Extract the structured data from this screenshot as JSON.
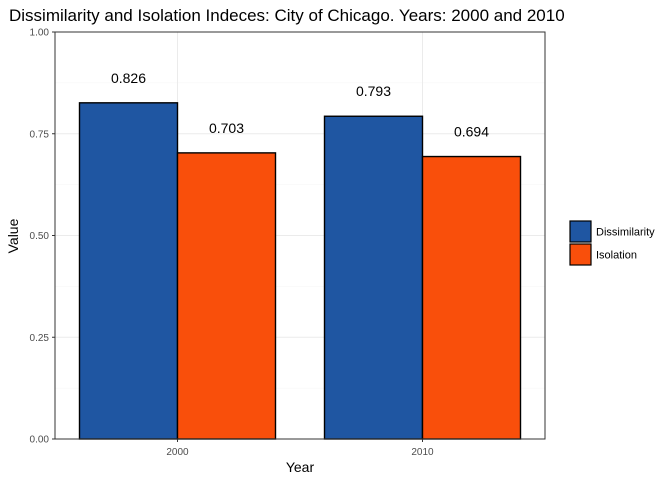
{
  "chart_data": {
    "type": "bar",
    "title": "Dissimilarity and Isolation Indeces: City of Chicago. Years: 2000 and 2010",
    "xlabel": "Year",
    "ylabel": "Value",
    "categories": [
      "2000",
      "2010"
    ],
    "ylim": [
      0,
      1
    ],
    "yticks": [
      0,
      0.25,
      0.5,
      0.75,
      1
    ],
    "ytick_labels": [
      "0.00",
      "0.25",
      "0.50",
      "0.75",
      "1.00"
    ],
    "grid": true,
    "legend_position": "right",
    "series": [
      {
        "name": "Dissimilarity",
        "color": "#1f56a2",
        "values": [
          0.826,
          0.793
        ],
        "labels": [
          "0.826",
          "0.793"
        ]
      },
      {
        "name": "Isolation",
        "color": "#f94f0b",
        "values": [
          0.703,
          0.694
        ],
        "labels": [
          "0.703",
          "0.694"
        ]
      }
    ]
  }
}
